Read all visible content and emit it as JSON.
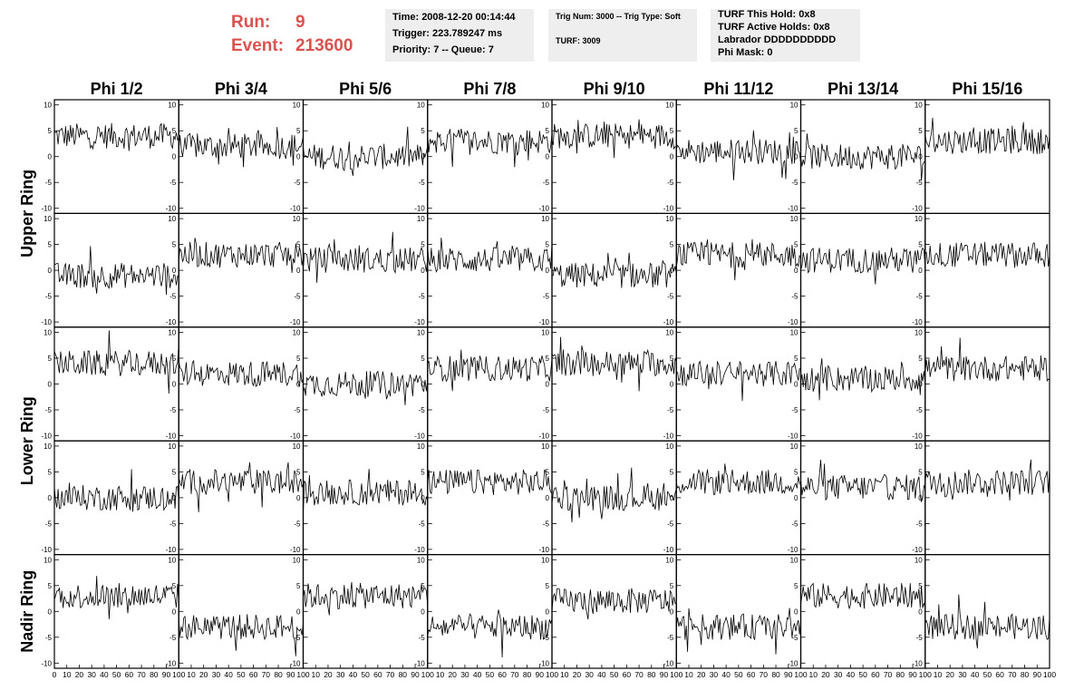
{
  "header": {
    "run_label": "Run:",
    "run_value": "9",
    "event_label": "Event:",
    "event_value": "213600"
  },
  "info_box_1": {
    "time": "Time: 2008-12-20 00:14:44",
    "trigger": "Trigger: 223.789247 ms",
    "priority": "Priority: 7 -- Queue: 7"
  },
  "info_box_2": {
    "trig": "Trig Num: 3000 -- Trig Type: Soft",
    "turf": "TURF: 3009"
  },
  "info_box_3": {
    "hold": "TURF This Hold: 0x8",
    "active": "TURF Active Holds: 0x8",
    "labrador": "Labrador DDDDDDDDDD",
    "mask": "Phi Mask: 0"
  },
  "accent_color": "#d9534f",
  "chart_data": {
    "type": "line",
    "columns": [
      "Phi 1/2",
      "Phi 3/4",
      "Phi 5/6",
      "Phi 7/8",
      "Phi 9/10",
      "Phi 11/12",
      "Phi 13/14",
      "Phi 15/16"
    ],
    "rings": [
      "Upper Ring",
      "Lower Ring",
      "Nadir Ring"
    ],
    "rows": 5,
    "ring_rows": [
      [
        0,
        1
      ],
      [
        2,
        3
      ],
      [
        4
      ]
    ],
    "x_range": [
      0,
      100
    ],
    "y_range": [
      -11,
      11
    ],
    "y_ticks": [
      10,
      5,
      0,
      -5,
      -10
    ],
    "x_tick_labels": [
      "0",
      "10",
      "20",
      "30",
      "40",
      "50",
      "60",
      "70",
      "80",
      "90",
      "100"
    ],
    "x_tick_values": [
      0,
      10,
      20,
      30,
      40,
      50,
      60,
      70,
      80,
      90,
      100
    ],
    "panel_baselines": [
      [
        4,
        2,
        0,
        3,
        4,
        1,
        0,
        3
      ],
      [
        -1,
        3,
        2,
        2,
        -1,
        3,
        2,
        3
      ],
      [
        4,
        2,
        0,
        3,
        4,
        2,
        1,
        3
      ],
      [
        0,
        3,
        1,
        3,
        0,
        3,
        2,
        3
      ],
      [
        3,
        -3,
        3,
        -3,
        2,
        -3,
        3,
        -3
      ]
    ],
    "noise_amplitude": 2.5
  }
}
